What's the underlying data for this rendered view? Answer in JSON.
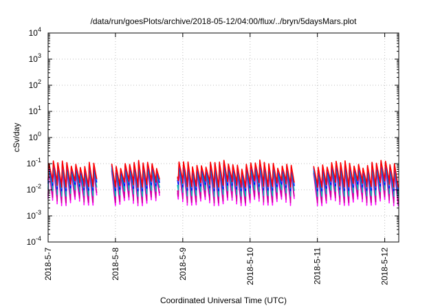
{
  "chart_data": {
    "type": "line",
    "title": "/data/run/goesPlots/archive/2018-05-12/04:00/flux/../bryn/5daysMars.plot",
    "xlabel": "Coordinated Universal Time (UTC)",
    "ylabel": "cSv/day",
    "yscale": "log",
    "ylim": [
      0.0001,
      10000
    ],
    "xlim": [
      "2018-05-07",
      "2018-05-12 05:00"
    ],
    "grid": true,
    "x_ticks": [
      "2018-5-7",
      "2018-5-8",
      "2018-5-9",
      "2018-5-10",
      "2018-5-11",
      "2018-5-12"
    ],
    "y_ticks": [
      {
        "base": "10",
        "exp": "-4"
      },
      {
        "base": "10",
        "exp": "-3"
      },
      {
        "base": "10",
        "exp": "-2"
      },
      {
        "base": "10",
        "exp": "-1"
      },
      {
        "base": "10",
        "exp": "0"
      },
      {
        "base": "10",
        "exp": "1"
      },
      {
        "base": "10",
        "exp": "2"
      },
      {
        "base": "10",
        "exp": "3"
      },
      {
        "base": "10",
        "exp": "4"
      }
    ],
    "pattern": {
      "description_values": "sawtooth dose rate, one spike per ~96 min orbit",
      "period_hours": 1.6,
      "peak_range": [
        0.05,
        0.12
      ],
      "trough_range": [
        0.003,
        0.02
      ]
    },
    "series": [
      {
        "color": "#ff00ff",
        "peak": 0.06,
        "trough": 0.0035
      },
      {
        "color": "#cc0099",
        "peak": 0.065,
        "trough": 0.0045
      },
      {
        "color": "#00b3b3",
        "peak": 0.075,
        "trough": 0.008
      },
      {
        "color": "#0000ff",
        "peak": 0.09,
        "trough": 0.013
      },
      {
        "color": "#3366ff",
        "peak": 0.1,
        "trough": 0.016
      },
      {
        "color": "#ff0000",
        "peak": 0.11,
        "trough": 0.018
      }
    ],
    "gaps": [
      {
        "start_hours": 17.5,
        "end_hours": 22.5
      },
      {
        "start_hours": 40.0,
        "end_hours": 46.0
      },
      {
        "start_hours": 88.0,
        "end_hours": 94.5
      }
    ]
  }
}
